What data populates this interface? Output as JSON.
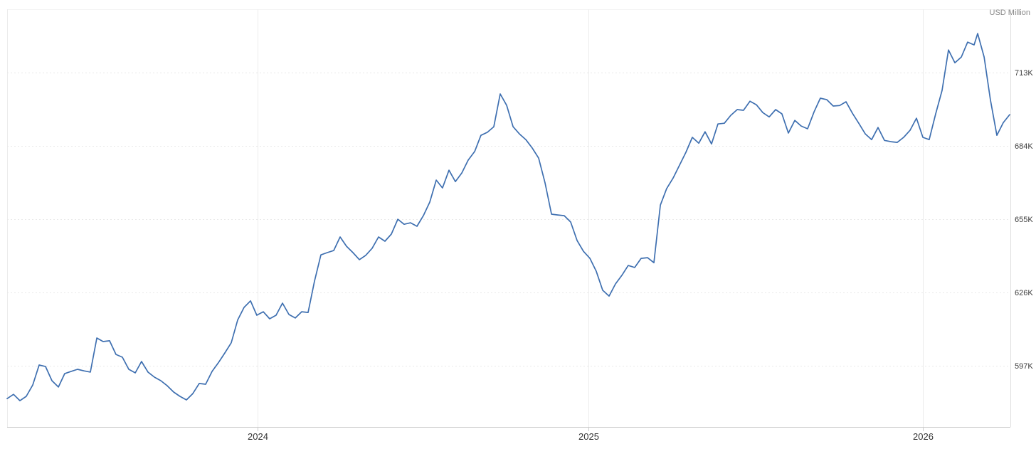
{
  "chart_data": {
    "type": "line",
    "title": "",
    "subtitle": "",
    "unit": "USD Million",
    "xlabel": "",
    "ylabel": "",
    "legend": "none",
    "grid": true,
    "line_color": "#3e6fb0",
    "axis_text_color": "#3c3c3c",
    "year_text_color": "#333333",
    "unit_text_color": "#888888",
    "ylim": [
      572.8,
      738.1
    ],
    "y_ticks": [
      {
        "label": "713K",
        "value": 713
      },
      {
        "label": "684K",
        "value": 684
      },
      {
        "label": "655K",
        "value": 655
      },
      {
        "label": "626K",
        "value": 626
      },
      {
        "label": "597K",
        "value": 597
      }
    ],
    "y_value_note": "values in thousands of USD Million (K)",
    "x_ticks": [
      {
        "label": "2024",
        "pos": 0.2496
      },
      {
        "label": "2025",
        "pos": 0.5794
      },
      {
        "label": "2026",
        "pos": 0.9128
      }
    ],
    "series": [
      {
        "name": "value",
        "points": [
          [
            0.0,
            584.0
          ],
          [
            0.0064,
            585.7
          ],
          [
            0.0128,
            583.2
          ],
          [
            0.0191,
            584.9
          ],
          [
            0.0255,
            589.4
          ],
          [
            0.0319,
            597.3
          ],
          [
            0.0383,
            596.7
          ],
          [
            0.0447,
            591.1
          ],
          [
            0.0511,
            588.6
          ],
          [
            0.0574,
            593.9
          ],
          [
            0.0638,
            594.8
          ],
          [
            0.0702,
            595.6
          ],
          [
            0.0766,
            595.0
          ],
          [
            0.083,
            594.5
          ],
          [
            0.0894,
            608.0
          ],
          [
            0.0957,
            606.6
          ],
          [
            0.1021,
            606.9
          ],
          [
            0.1085,
            601.5
          ],
          [
            0.1149,
            600.4
          ],
          [
            0.1213,
            595.6
          ],
          [
            0.1277,
            594.2
          ],
          [
            0.134,
            598.7
          ],
          [
            0.1404,
            594.5
          ],
          [
            0.1468,
            592.5
          ],
          [
            0.1532,
            591.1
          ],
          [
            0.1596,
            589.1
          ],
          [
            0.166,
            586.6
          ],
          [
            0.1723,
            584.9
          ],
          [
            0.1787,
            583.5
          ],
          [
            0.1851,
            586.0
          ],
          [
            0.1915,
            590.0
          ],
          [
            0.1979,
            589.7
          ],
          [
            0.2043,
            594.8
          ],
          [
            0.2106,
            598.2
          ],
          [
            0.217,
            602.1
          ],
          [
            0.2234,
            606.1
          ],
          [
            0.2298,
            615.1
          ],
          [
            0.2362,
            620.1
          ],
          [
            0.2426,
            622.7
          ],
          [
            0.2489,
            617.0
          ],
          [
            0.2553,
            618.4
          ],
          [
            0.2617,
            615.6
          ],
          [
            0.2681,
            617.0
          ],
          [
            0.2745,
            621.8
          ],
          [
            0.2809,
            617.3
          ],
          [
            0.2872,
            615.9
          ],
          [
            0.2936,
            618.4
          ],
          [
            0.3,
            618.1
          ],
          [
            0.3064,
            630.5
          ],
          [
            0.3128,
            640.9
          ],
          [
            0.3191,
            641.8
          ],
          [
            0.3255,
            642.6
          ],
          [
            0.3319,
            648.0
          ],
          [
            0.3383,
            644.3
          ],
          [
            0.3447,
            641.8
          ],
          [
            0.3511,
            639.0
          ],
          [
            0.3574,
            640.7
          ],
          [
            0.3638,
            643.5
          ],
          [
            0.3702,
            648.0
          ],
          [
            0.3766,
            646.3
          ],
          [
            0.383,
            649.1
          ],
          [
            0.3894,
            655.0
          ],
          [
            0.3957,
            653.0
          ],
          [
            0.4021,
            653.6
          ],
          [
            0.4085,
            652.2
          ],
          [
            0.4149,
            656.4
          ],
          [
            0.4213,
            661.8
          ],
          [
            0.4277,
            670.5
          ],
          [
            0.434,
            667.4
          ],
          [
            0.4404,
            674.4
          ],
          [
            0.4468,
            669.9
          ],
          [
            0.4532,
            673.3
          ],
          [
            0.4596,
            678.4
          ],
          [
            0.466,
            681.8
          ],
          [
            0.4723,
            688.2
          ],
          [
            0.4787,
            689.4
          ],
          [
            0.4851,
            691.6
          ],
          [
            0.4915,
            704.6
          ],
          [
            0.4979,
            700.1
          ],
          [
            0.5043,
            691.6
          ],
          [
            0.5106,
            688.8
          ],
          [
            0.517,
            686.5
          ],
          [
            0.5234,
            683.2
          ],
          [
            0.5298,
            679.2
          ],
          [
            0.5362,
            669.4
          ],
          [
            0.5426,
            657.0
          ],
          [
            0.5489,
            656.7
          ],
          [
            0.5553,
            656.4
          ],
          [
            0.5617,
            653.9
          ],
          [
            0.5681,
            646.6
          ],
          [
            0.5745,
            642.3
          ],
          [
            0.5809,
            639.5
          ],
          [
            0.5872,
            634.4
          ],
          [
            0.5936,
            626.9
          ],
          [
            0.6,
            624.6
          ],
          [
            0.6064,
            629.4
          ],
          [
            0.6128,
            632.8
          ],
          [
            0.6191,
            636.7
          ],
          [
            0.6255,
            635.9
          ],
          [
            0.6319,
            639.5
          ],
          [
            0.6383,
            639.8
          ],
          [
            0.6447,
            637.8
          ],
          [
            0.6511,
            660.6
          ],
          [
            0.6574,
            667.1
          ],
          [
            0.6638,
            671.3
          ],
          [
            0.6702,
            676.4
          ],
          [
            0.6766,
            681.5
          ],
          [
            0.683,
            687.4
          ],
          [
            0.6894,
            685.1
          ],
          [
            0.6957,
            689.6
          ],
          [
            0.7021,
            684.8
          ],
          [
            0.7085,
            692.7
          ],
          [
            0.7149,
            693.0
          ],
          [
            0.7213,
            696.1
          ],
          [
            0.7277,
            698.4
          ],
          [
            0.734,
            698.1
          ],
          [
            0.7404,
            701.7
          ],
          [
            0.7468,
            700.3
          ],
          [
            0.7532,
            697.2
          ],
          [
            0.7596,
            695.5
          ],
          [
            0.766,
            698.4
          ],
          [
            0.7723,
            696.7
          ],
          [
            0.7787,
            689.1
          ],
          [
            0.7851,
            694.1
          ],
          [
            0.7915,
            691.9
          ],
          [
            0.7979,
            690.8
          ],
          [
            0.8043,
            697.5
          ],
          [
            0.8106,
            702.9
          ],
          [
            0.817,
            702.3
          ],
          [
            0.8234,
            699.8
          ],
          [
            0.8298,
            700.0
          ],
          [
            0.8362,
            701.5
          ],
          [
            0.8426,
            696.9
          ],
          [
            0.8489,
            693.0
          ],
          [
            0.8553,
            688.8
          ],
          [
            0.8617,
            686.5
          ],
          [
            0.8681,
            691.3
          ],
          [
            0.8745,
            686.2
          ],
          [
            0.8809,
            685.7
          ],
          [
            0.8872,
            685.4
          ],
          [
            0.8936,
            687.4
          ],
          [
            0.9,
            690.2
          ],
          [
            0.9064,
            695.0
          ],
          [
            0.9128,
            687.4
          ],
          [
            0.9191,
            686.5
          ],
          [
            0.9255,
            696.7
          ],
          [
            0.9319,
            706.0
          ],
          [
            0.9383,
            722.0
          ],
          [
            0.9447,
            716.9
          ],
          [
            0.9511,
            719.2
          ],
          [
            0.9574,
            725.1
          ],
          [
            0.9638,
            724.0
          ],
          [
            0.9674,
            728.5
          ],
          [
            0.9738,
            719.2
          ],
          [
            0.9801,
            702.3
          ],
          [
            0.9865,
            688.2
          ],
          [
            0.9929,
            693.2
          ],
          [
            0.9993,
            696.4
          ]
        ]
      }
    ]
  }
}
